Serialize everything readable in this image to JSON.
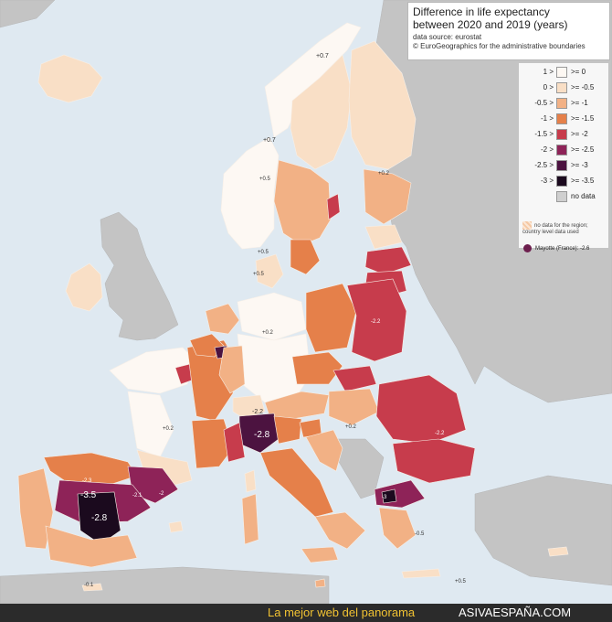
{
  "map": {
    "title_line1": "Difference in life expectancy",
    "title_line2": "between 2020 and 2019 (years)",
    "source": "data source: eurostat",
    "copyright": "© EuroGeographics for the administrative boundaries"
  },
  "legend": {
    "items": [
      {
        "lt": "1 >",
        "ge": ">= 0",
        "color": "#fdf8f3"
      },
      {
        "lt": "0 >",
        "ge": ">= -0.5",
        "color": "#f9dfc6"
      },
      {
        "lt": "-0.5 >",
        "ge": ">= -1",
        "color": "#f2b185"
      },
      {
        "lt": "-1 >",
        "ge": ">= -1.5",
        "color": "#e5804a"
      },
      {
        "lt": "-1.5 >",
        "ge": ">= -2",
        "color": "#c73c4c"
      },
      {
        "lt": "-2 >",
        "ge": ">= -2.5",
        "color": "#8e2358"
      },
      {
        "lt": "-2.5 >",
        "ge": ">= -3",
        "color": "#4c1340"
      },
      {
        "lt": "-3 >",
        "ge": ">= -3.5",
        "color": "#1b0a1e"
      },
      {
        "lt": "",
        "ge": "no data",
        "color": "#cfcfcf"
      }
    ],
    "nodata_note": "no data for the region; country level data used",
    "mayotte": "Mayotte (France): -2.6"
  },
  "map_labels": [
    "+0.7",
    "+0.7",
    "+0.5",
    "+0.2",
    "+0.5",
    "+0.5",
    "+0.2",
    "+0.2",
    "+0.2",
    "-2.2",
    "-2.8",
    "-3.5",
    "-2.8",
    "-2.3",
    "-2.1",
    "-2",
    "-2.2",
    "-2.2",
    "-3",
    "-0.5",
    "+0.5",
    "-0.1"
  ],
  "footer": {
    "left": "La mejor web del panorama",
    "right": "ASIVAESPAÑA.COM"
  },
  "colors": {
    "sea": "#dfe9f1",
    "non_eu_land": "#c4c4c4",
    "footer_bg": "#2b2b2b",
    "footer_accent": "#f1c232"
  }
}
